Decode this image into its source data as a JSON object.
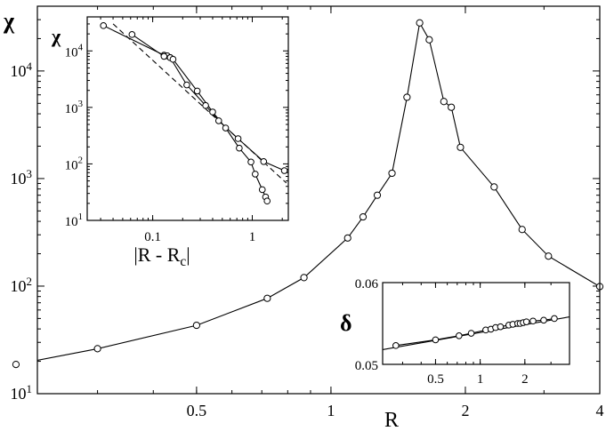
{
  "chart_data": [
    {
      "id": "main",
      "type": "line",
      "ylabel": "χ",
      "xlabel": "R",
      "xscale": "log",
      "yscale": "log",
      "xlim": [
        0.22,
        4
      ],
      "ylim": [
        10,
        40000
      ],
      "x_ticks": [
        {
          "value": 0.5,
          "label": "0.5"
        },
        {
          "value": 1,
          "label": "1"
        },
        {
          "value": 2,
          "label": "2"
        },
        {
          "value": 4,
          "label": "4"
        }
      ],
      "y_ticks": [
        {
          "value": 10,
          "base": "10",
          "exp": "1"
        },
        {
          "value": 100,
          "base": "10",
          "exp": "2"
        },
        {
          "value": 1000,
          "base": "10",
          "exp": "3"
        },
        {
          "value": 10000,
          "base": "10",
          "exp": "4"
        }
      ],
      "series": [
        {
          "marker": "circle",
          "x": [
            0.197,
            0.3,
            0.5,
            0.72,
            0.87,
            1.09,
            1.18,
            1.27,
            1.37,
            1.48,
            1.58,
            1.66,
            1.79,
            1.86,
            1.95,
            2.32,
            2.68,
            3.07,
            4.0
          ],
          "y": [
            18.7,
            26.2,
            43.2,
            77,
            120,
            280,
            440,
            700,
            1120,
            5700,
            28000,
            19500,
            5200,
            4600,
            1950,
            835,
            336,
            190,
            99
          ]
        }
      ]
    },
    {
      "id": "inset-top-left",
      "type": "line",
      "ylabel": "χ",
      "xlabel": "|R - Rc|",
      "xlabel_main": "|R - R",
      "xlabel_sub": "c",
      "xlabel_close": "|",
      "xscale": "log",
      "yscale": "log",
      "xlim": [
        0.022,
        2.3
      ],
      "ylim": [
        10,
        40000
      ],
      "x_ticks": [
        {
          "value": 0.1,
          "label": "0.1"
        },
        {
          "value": 1,
          "label": "1"
        }
      ],
      "y_ticks": [
        {
          "value": 10,
          "base": "10",
          "exp": "1"
        },
        {
          "value": 100,
          "base": "10",
          "exp": "2"
        },
        {
          "value": 1000,
          "base": "10",
          "exp": "3"
        },
        {
          "value": 10000,
          "base": "10",
          "exp": "4"
        }
      ],
      "series": [
        {
          "marker": "circle",
          "x": [
            0.032,
            0.13,
            0.14,
            0.15,
            0.22,
            0.34,
            0.46,
            0.72,
            1.3,
            2.1
          ],
          "y": [
            28000,
            8400,
            8200,
            7600,
            2500,
            1080,
            580,
            280,
            110,
            76
          ]
        },
        {
          "marker": "circle",
          "x": [
            0.062,
            0.13,
            0.15,
            0.16,
            0.28,
            0.4,
            0.54,
            0.74,
            0.97,
            1.07,
            1.26,
            1.36,
            1.41
          ],
          "y": [
            19500,
            8000,
            7600,
            7100,
            1950,
            830,
            432,
            190,
            108,
            66,
            35,
            26,
            22
          ]
        },
        {
          "style": "dashed",
          "x": [
            0.04,
            2.2
          ],
          "y": [
            30000,
            46
          ]
        }
      ]
    },
    {
      "id": "inset-bottom-right",
      "type": "line",
      "ylabel": "δ",
      "xscale": "log",
      "xlim": [
        0.22,
        4
      ],
      "ylim": [
        0.05,
        0.06
      ],
      "x_ticks": [
        {
          "value": 0.5,
          "label": "0.5"
        },
        {
          "value": 1,
          "label": "1"
        },
        {
          "value": 2,
          "label": "2"
        }
      ],
      "y_ticks": [
        {
          "value": 0.05,
          "label": "0.05"
        },
        {
          "value": 0.06,
          "label": "0.06"
        }
      ],
      "series": [
        {
          "marker": "circle",
          "x": [
            0.27,
            0.5,
            0.72,
            0.87,
            1.09,
            1.18,
            1.27,
            1.37,
            1.56,
            1.66,
            1.79,
            1.86,
            1.95,
            2.05,
            2.27,
            2.68,
            3.16
          ],
          "y": [
            0.0523,
            0.053,
            0.0535,
            0.0538,
            0.0542,
            0.0543,
            0.0545,
            0.0546,
            0.0548,
            0.0549,
            0.055,
            0.055,
            0.0551,
            0.0552,
            0.0553,
            0.0554,
            0.0556
          ]
        },
        {
          "style": "line",
          "x": [
            0.22,
            4.0
          ],
          "y": [
            0.0518,
            0.0558
          ]
        }
      ]
    }
  ]
}
